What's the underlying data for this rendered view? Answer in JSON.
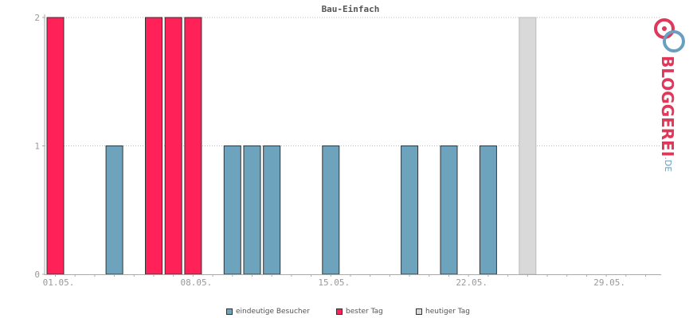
{
  "chart_data": {
    "type": "bar",
    "title": "Bau-Einfach",
    "x_tick_labels": [
      "01.05.",
      "08.05.",
      "15.05.",
      "22.05.",
      "29.05."
    ],
    "y_tick_labels": [
      "0",
      "1",
      "2"
    ],
    "ylim": [
      0,
      2
    ],
    "grid": true,
    "days": 31,
    "values": [
      2,
      0,
      0,
      1,
      0,
      2,
      2,
      2,
      0,
      1,
      1,
      1,
      0,
      0,
      1,
      0,
      0,
      0,
      1,
      0,
      1,
      0,
      1,
      0,
      2,
      0,
      0,
      0,
      0,
      0,
      0
    ],
    "kinds": [
      "best",
      null,
      null,
      "unique",
      null,
      "best",
      "best",
      "best",
      null,
      "unique",
      "unique",
      "unique",
      null,
      null,
      "unique",
      null,
      null,
      null,
      "unique",
      null,
      "unique",
      null,
      "unique",
      null,
      "today",
      null,
      null,
      null,
      null,
      null,
      null
    ],
    "colors": {
      "unique": "#6da3bd",
      "best": "#ff2157",
      "today": "#d9d9d9"
    },
    "legend": [
      {
        "kind": "unique",
        "label": "eindeutige Besucher"
      },
      {
        "kind": "best",
        "label": "bester Tag"
      },
      {
        "kind": "today",
        "label": "heutiger Tag"
      }
    ],
    "legend_placement": "bottom-center"
  },
  "logo": {
    "word": "BLOGGEREI",
    "suffix": ".DE"
  }
}
